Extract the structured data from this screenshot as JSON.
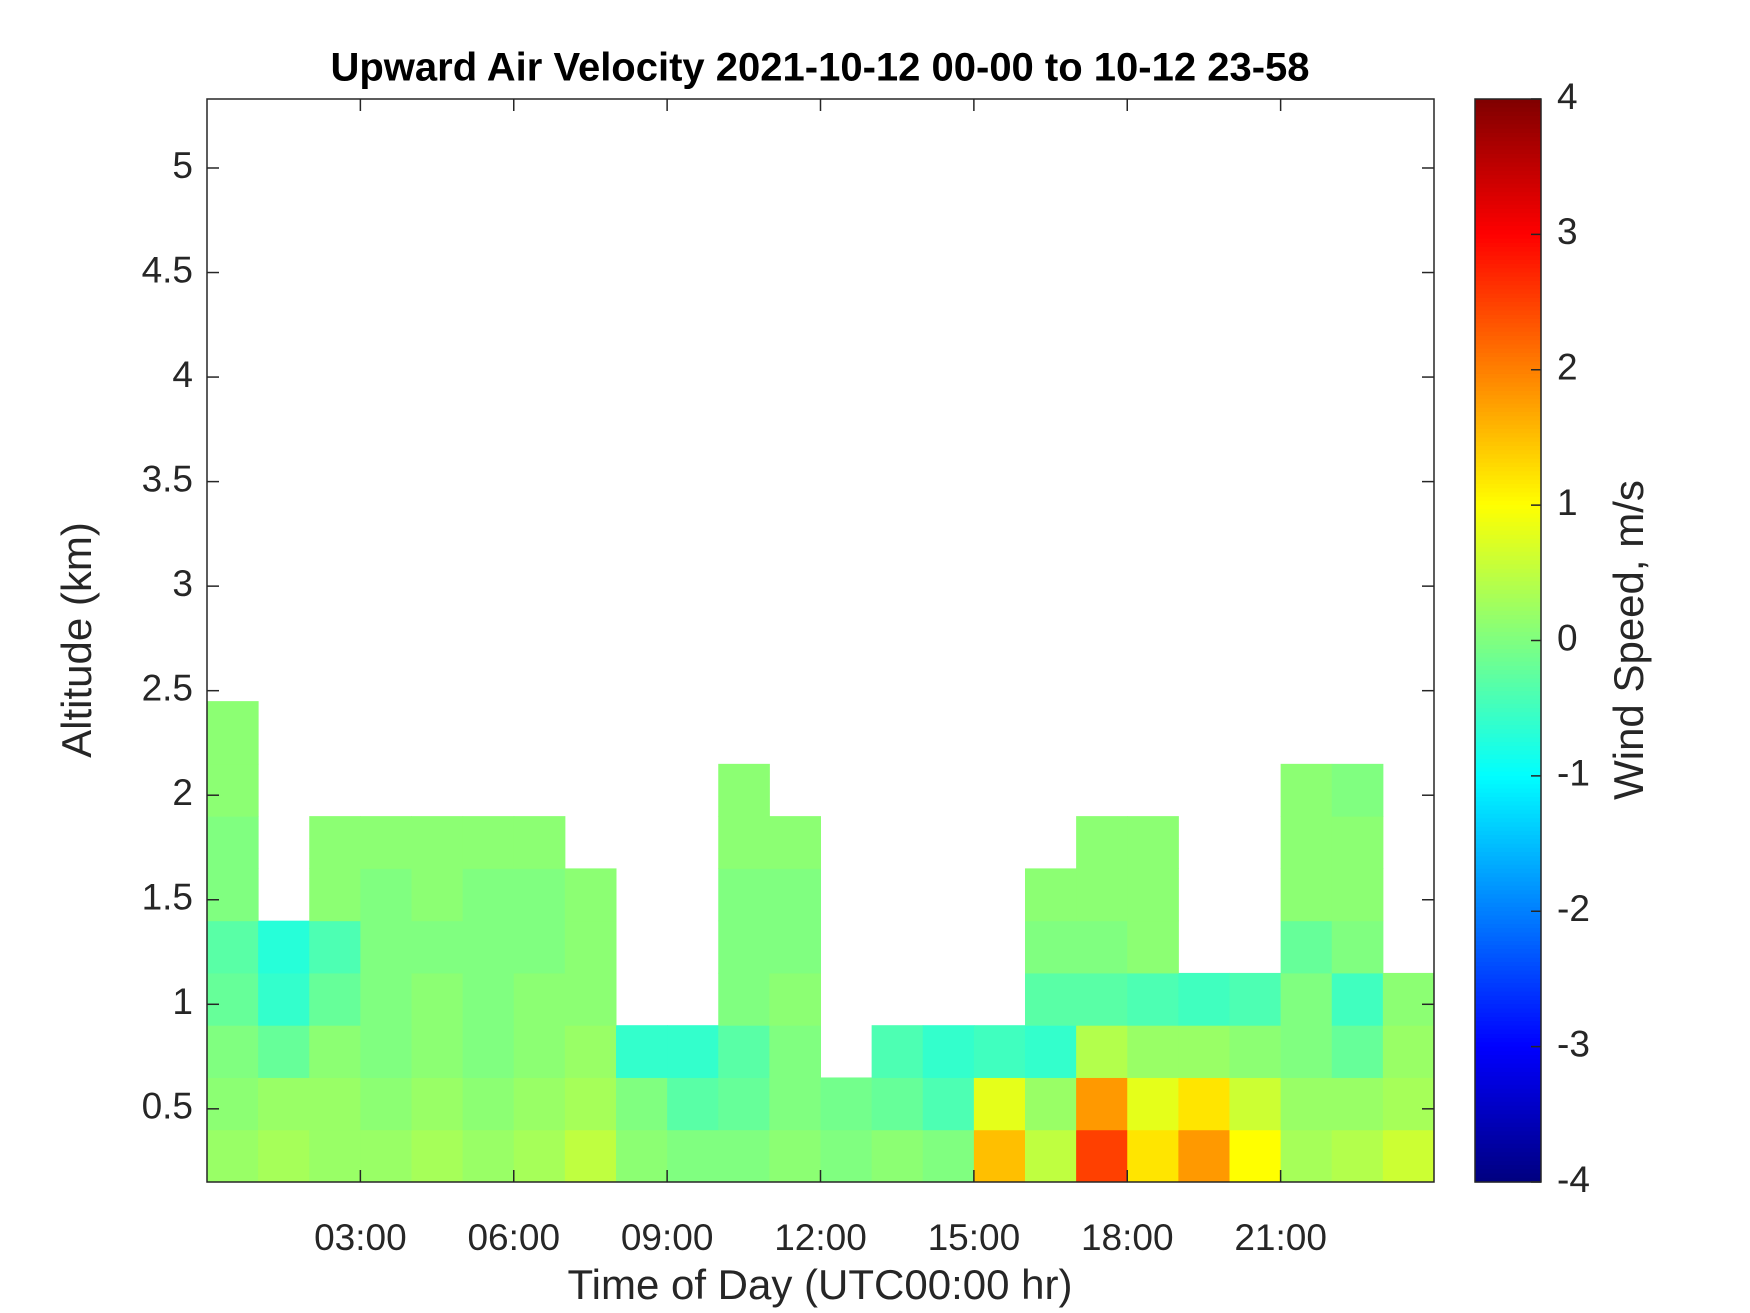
{
  "chart_data": {
    "type": "heatmap",
    "title": "Upward Air Velocity 2021-10-12 00-00 to 10-12 23-58",
    "xlabel": "Time of Day (UTC00:00 hr)",
    "ylabel": "Altitude (km)",
    "colorbar_label": "Wind Speed, m/s",
    "colormap": "jet",
    "clim": [
      -4,
      4
    ],
    "cticks": [
      -4,
      -3,
      -2,
      -1,
      0,
      1,
      2,
      3,
      4
    ],
    "xlim": [
      0,
      24
    ],
    "xticks": [
      {
        "value": 3,
        "label": "03:00"
      },
      {
        "value": 6,
        "label": "06:00"
      },
      {
        "value": 9,
        "label": "09:00"
      },
      {
        "value": 12,
        "label": "12:00"
      },
      {
        "value": 15,
        "label": "15:00"
      },
      {
        "value": 18,
        "label": "18:00"
      },
      {
        "value": 21,
        "label": "21:00"
      }
    ],
    "ylim": [
      0.15,
      5.33
    ],
    "yticks": [
      0.5,
      1,
      1.5,
      2,
      2.5,
      3,
      3.5,
      4,
      4.5,
      5
    ],
    "x_bins": [
      0,
      1,
      2,
      3,
      4,
      5,
      6,
      7,
      8,
      9,
      10,
      11,
      12,
      13,
      14,
      15,
      16,
      17,
      18,
      19,
      20,
      21,
      22,
      23,
      24
    ],
    "y_bins": [
      0.15,
      0.4,
      0.65,
      0.9,
      1.15,
      1.4,
      1.65,
      1.9,
      2.15,
      2.45
    ],
    "z": [
      [
        0.2,
        0.3,
        0.2,
        0.2,
        0.3,
        0.2,
        0.3,
        0.5,
        0.1,
        0.0,
        0.0,
        0.1,
        0.0,
        0.1,
        0.0,
        1.5,
        0.5,
        2.5,
        1.2,
        1.8,
        1.0,
        0.3,
        0.4,
        0.6
      ],
      [
        0.1,
        0.2,
        0.2,
        0.1,
        0.2,
        0.1,
        0.2,
        0.3,
        0.0,
        -0.3,
        -0.2,
        0.0,
        -0.1,
        -0.2,
        -0.4,
        0.8,
        0.2,
        1.8,
        0.8,
        1.2,
        0.6,
        0.2,
        0.2,
        0.3
      ],
      [
        0.0,
        -0.2,
        0.1,
        0.0,
        0.1,
        0.0,
        0.1,
        0.2,
        -0.6,
        -0.6,
        -0.3,
        0.0,
        null,
        -0.4,
        -0.6,
        -0.5,
        -0.6,
        0.4,
        0.2,
        0.2,
        0.1,
        0.0,
        -0.2,
        0.2
      ],
      [
        -0.2,
        -0.6,
        -0.2,
        0.0,
        0.1,
        0.0,
        0.1,
        0.1,
        null,
        null,
        0.0,
        0.1,
        null,
        null,
        null,
        null,
        -0.3,
        -0.3,
        -0.4,
        -0.5,
        -0.4,
        0.0,
        -0.5,
        0.1
      ],
      [
        -0.3,
        -0.7,
        -0.4,
        0.0,
        0.0,
        0.0,
        0.0,
        0.1,
        null,
        null,
        0.0,
        0.0,
        null,
        null,
        null,
        null,
        0.0,
        0.0,
        0.1,
        null,
        null,
        -0.2,
        0.0,
        null
      ],
      [
        0.0,
        null,
        0.1,
        0.0,
        0.1,
        0.0,
        0.0,
        0.1,
        null,
        null,
        0.0,
        0.0,
        null,
        null,
        null,
        null,
        0.1,
        0.1,
        0.1,
        null,
        null,
        0.1,
        0.1,
        null
      ],
      [
        0.0,
        null,
        0.1,
        0.1,
        0.1,
        0.1,
        0.1,
        null,
        null,
        null,
        0.1,
        0.1,
        null,
        null,
        null,
        null,
        null,
        0.1,
        0.1,
        null,
        null,
        0.1,
        0.1,
        null
      ],
      [
        0.1,
        null,
        null,
        null,
        null,
        null,
        null,
        null,
        null,
        null,
        0.1,
        null,
        null,
        null,
        null,
        null,
        null,
        null,
        null,
        null,
        null,
        0.1,
        0.0,
        null
      ],
      [
        0.1,
        null,
        null,
        null,
        null,
        null,
        null,
        null,
        null,
        null,
        null,
        null,
        null,
        null,
        null,
        null,
        null,
        null,
        null,
        null,
        null,
        null,
        null,
        null
      ]
    ]
  }
}
